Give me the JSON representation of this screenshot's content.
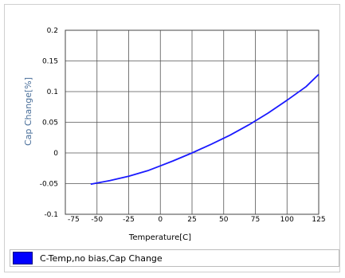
{
  "chart_data": {
    "type": "line",
    "xlabel": "Temperature[C]",
    "ylabel": "Cap Change[%]",
    "xlim": [
      -75,
      125
    ],
    "ylim": [
      -0.1,
      0.2
    ],
    "x_ticks": [
      "-75",
      "-50",
      "-25",
      "0",
      "25",
      "50",
      "75",
      "100",
      "125"
    ],
    "y_ticks": [
      "0.2",
      "0.15",
      "0.1",
      "0.05",
      "0",
      "-0.05",
      "-0.1"
    ],
    "grid": true,
    "legend_position": "bottom",
    "series": [
      {
        "name": "C-Temp,no bias,Cap Change",
        "color": "#1a1aff",
        "x": [
          -55,
          -40,
          -25,
          -10,
          0,
          10,
          25,
          40,
          55,
          70,
          85,
          100,
          115,
          125
        ],
        "y": [
          -0.051,
          -0.045,
          -0.038,
          -0.029,
          -0.021,
          -0.013,
          0.0,
          0.014,
          0.029,
          0.046,
          0.065,
          0.086,
          0.108,
          0.128
        ]
      }
    ]
  }
}
